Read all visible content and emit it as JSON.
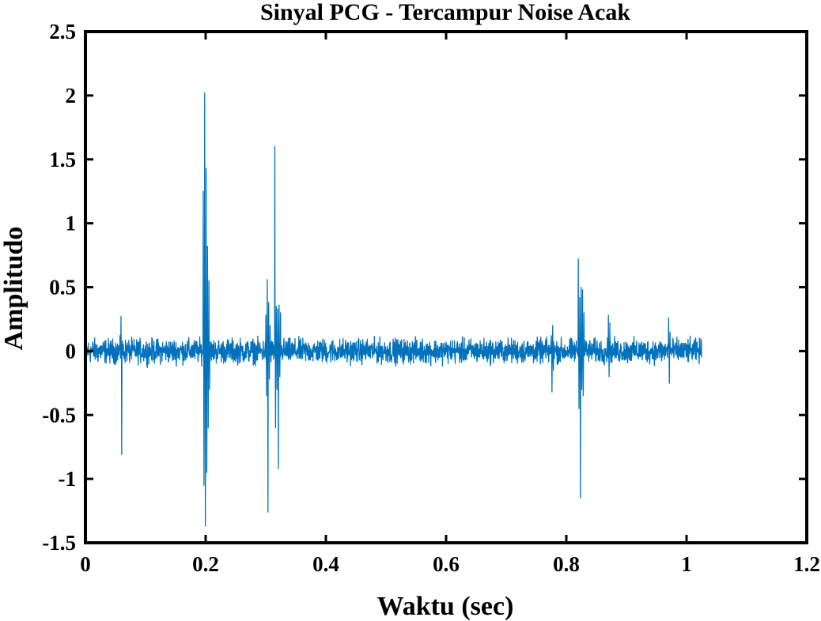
{
  "chart_data": {
    "type": "line",
    "title": "Sinyal PCG - Tercampur Noise Acak",
    "xlabel": "Waktu (sec)",
    "ylabel": "Amplitudo",
    "xlim": [
      0,
      1.2
    ],
    "ylim": [
      -1.5,
      2.5
    ],
    "xticks": [
      0,
      0.2,
      0.4,
      0.6,
      0.8,
      1,
      1.2
    ],
    "xtick_labels": [
      "0",
      "0.2",
      "0.4",
      "0.6",
      "0.8",
      "1",
      "1.2"
    ],
    "yticks": [
      -1.5,
      -1,
      -0.5,
      0,
      0.5,
      1,
      1.5,
      2,
      2.5
    ],
    "ytick_labels": [
      "-1.5",
      "-1",
      "-0.5",
      "0",
      "0.5",
      "1",
      "1.5",
      "2",
      "2.5"
    ],
    "grid": false,
    "line_color": "#0072BD",
    "series": [
      {
        "x_start": 0,
        "x_end": 1.025,
        "noise_amplitude": 0.07,
        "events": [
          {
            "x": 0.059,
            "values": [
              0.27,
              -0.81
            ]
          },
          {
            "x": 0.196,
            "values": [
              1.25,
              -1.05,
              2.02,
              -1.37,
              1.43,
              -0.95,
              0.82,
              -0.6,
              0.55,
              -0.3
            ]
          },
          {
            "x": 0.3,
            "values": [
              0.28,
              -0.35,
              0.56,
              -1.26,
              0.38,
              -0.22,
              0.2
            ]
          },
          {
            "x": 0.315,
            "values": [
              1.6,
              -0.6,
              0.35,
              -0.3,
              0.33,
              -0.92,
              0.36,
              -0.2,
              0.3
            ]
          },
          {
            "x": 0.775,
            "values": [
              0.12,
              -0.32,
              0.2,
              -0.15
            ]
          },
          {
            "x": 0.82,
            "values": [
              0.72,
              -0.45,
              0.42,
              -1.15,
              0.5,
              -0.3,
              0.48,
              -0.35,
              0.3
            ]
          },
          {
            "x": 0.87,
            "values": [
              0.28,
              -0.2,
              0.22
            ]
          },
          {
            "x": 0.97,
            "values": [
              0.26,
              -0.25,
              0.15
            ]
          }
        ]
      }
    ]
  }
}
